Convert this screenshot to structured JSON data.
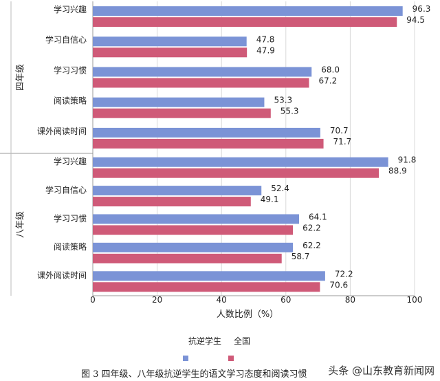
{
  "chart_data": {
    "type": "bar",
    "orientation": "horizontal",
    "groups": [
      {
        "name": "四年级",
        "categories": [
          "学习兴趣",
          "学习自信心",
          "学习习惯",
          "阅读策略",
          "课外阅读时间"
        ],
        "series": [
          {
            "name": "抗逆学生",
            "values": [
              96.3,
              47.8,
              68.0,
              53.3,
              70.7
            ]
          },
          {
            "name": "全国",
            "values": [
              94.5,
              47.9,
              67.2,
              55.3,
              71.7
            ]
          }
        ],
        "value_labels": [
          [
            "96.3",
            "47.8",
            "68.0",
            "53.3",
            "70.7"
          ],
          [
            "94.5",
            "47.9",
            "67.2",
            "55.3",
            "71.7"
          ]
        ]
      },
      {
        "name": "八年级",
        "categories": [
          "学习兴趣",
          "学习自信心",
          "学习习惯",
          "阅读策略",
          "课外阅读时间"
        ],
        "series": [
          {
            "name": "抗逆学生",
            "values": [
              91.8,
              52.4,
              64.1,
              62.2,
              72.2
            ]
          },
          {
            "name": "全国",
            "values": [
              88.9,
              49.1,
              62.2,
              58.7,
              70.6
            ]
          }
        ],
        "value_labels": [
          [
            "91.8",
            "52.4",
            "64.1",
            "62.2",
            "72.2"
          ],
          [
            "88.9",
            "49.1",
            "62.2",
            "58.7",
            "70.6"
          ]
        ]
      }
    ],
    "xlabel": "人数比例（%）",
    "xlim": [
      0,
      100
    ],
    "xticks": [
      0,
      20,
      40,
      60,
      80,
      100
    ],
    "legend_placement": "bottom",
    "colors": {
      "抗逆学生": "#7b93d6",
      "全国": "#cf5a78"
    }
  },
  "caption": {
    "text": "图 3   四年级、八年级抗逆学生的语文学习态度和阅读习惯",
    "watermark": "头条 @山东教育新闻网"
  }
}
